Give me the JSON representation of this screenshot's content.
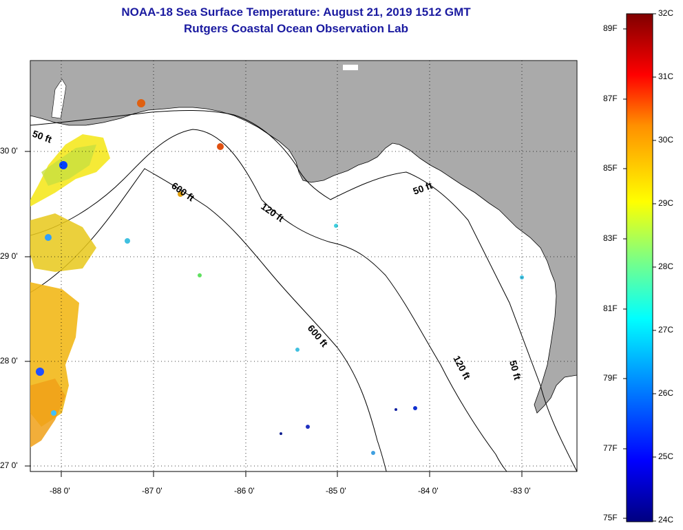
{
  "header": {
    "title": "NOAA-18 Sea Surface Temperature:  August 21, 2019 1512 GMT",
    "subtitle": "Rutgers Coastal Ocean Observation Lab"
  },
  "map": {
    "lon_range": [
      -88.33,
      -82.5
    ],
    "lat_range": [
      26.97,
      30.85
    ],
    "lon_ticks": [
      "-88 0'",
      "-87 0'",
      "-86 0'",
      "-85 0'",
      "-84 0'",
      "-83 0'"
    ],
    "lat_ticks": [
      "27 0'",
      "28 0'",
      "29 0'",
      "30 0'"
    ],
    "land_color": "#aaaaaa",
    "water_color": "#ffffff",
    "contours": [
      {
        "label": "50 ft"
      },
      {
        "label": "120 ft"
      },
      {
        "label": "600 ft"
      },
      {
        "label": "600 ft"
      },
      {
        "label": "120 ft"
      },
      {
        "label": "50 ft"
      },
      {
        "label": "50 ft"
      }
    ]
  },
  "colorbar": {
    "celsius_labels": [
      "32C",
      "31C",
      "30C",
      "29C",
      "28C",
      "27C",
      "26C",
      "25C",
      "24C"
    ],
    "fahrenheit_labels": [
      "89F",
      "87F",
      "85F",
      "83F",
      "81F",
      "79F",
      "77F",
      "75F"
    ],
    "colors": [
      "#000080",
      "#0000ff",
      "#0080ff",
      "#00ffff",
      "#80ff80",
      "#ffff00",
      "#ff8000",
      "#ff0000",
      "#800000"
    ]
  }
}
